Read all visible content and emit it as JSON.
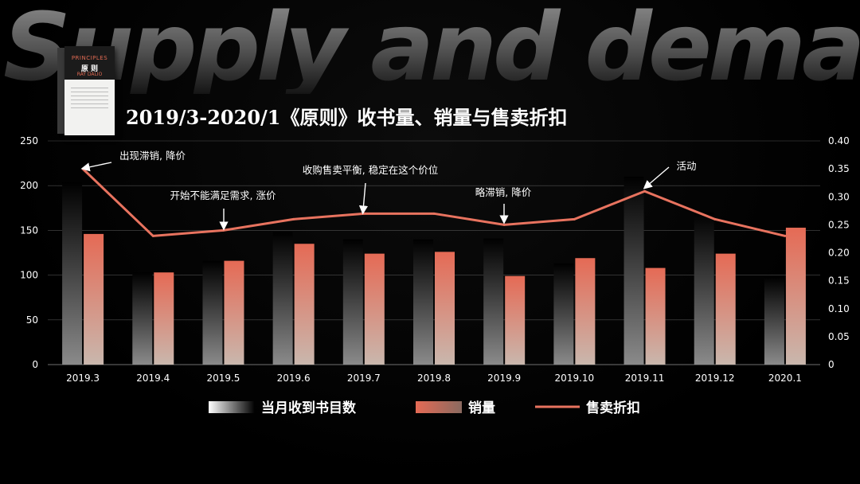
{
  "background_title": "Supply and demand",
  "book": {
    "line1": "PRINCIPLES",
    "line2": "原 则",
    "line3": "RAY DALIO"
  },
  "chart_data": {
    "type": "bar",
    "title": "2019/3-2020/1《原则》收书量、销量与售卖折扣",
    "categories": [
      "2019.3",
      "2019.4",
      "2019.5",
      "2019.6",
      "2019.7",
      "2019.8",
      "2019.9",
      "2019.10",
      "2019.11",
      "2019.12",
      "2020.1"
    ],
    "series": [
      {
        "name": "当月收到书目数",
        "kind": "bar",
        "axis": "left",
        "values": [
          204,
          103,
          116,
          148,
          140,
          140,
          141,
          113,
          210,
          170,
          98
        ]
      },
      {
        "name": "销量",
        "kind": "bar",
        "axis": "left",
        "values": [
          146,
          103,
          116,
          135,
          124,
          126,
          99,
          119,
          108,
          124,
          153
        ]
      },
      {
        "name": "售卖折扣",
        "kind": "line",
        "axis": "right",
        "values": [
          0.35,
          0.23,
          0.24,
          0.26,
          0.27,
          0.27,
          0.25,
          0.26,
          0.31,
          0.26,
          0.23
        ]
      }
    ],
    "ylim_left": [
      0,
      250
    ],
    "yticks_left": [
      "0",
      "50",
      "100",
      "150",
      "200",
      "250"
    ],
    "ylim_right": [
      0,
      0.4
    ],
    "yticks_right": [
      "0",
      "0.05",
      "0.10",
      "0.15",
      "0.20",
      "0.25",
      "0.30",
      "0.35",
      "0.40"
    ],
    "grid": true,
    "legend_position": "bottom",
    "annotations": [
      {
        "text": "出现滞销, 降价",
        "index": 0
      },
      {
        "text": "开始不能满足需求, 涨价",
        "index": 2
      },
      {
        "text": "收购售卖平衡, 稳定在这个价位",
        "index": 4
      },
      {
        "text": "略滞销, 降价",
        "index": 6
      },
      {
        "text": "活动",
        "index": 8
      }
    ]
  },
  "colors": {
    "bar_received_top": "#000000",
    "bar_received_bottom": "#8a8a8a",
    "bar_sales_top": "#e56a55",
    "bar_sales_bottom": "#c9b7ad",
    "line": "#e8735f",
    "grid": "#8a8a8a"
  }
}
